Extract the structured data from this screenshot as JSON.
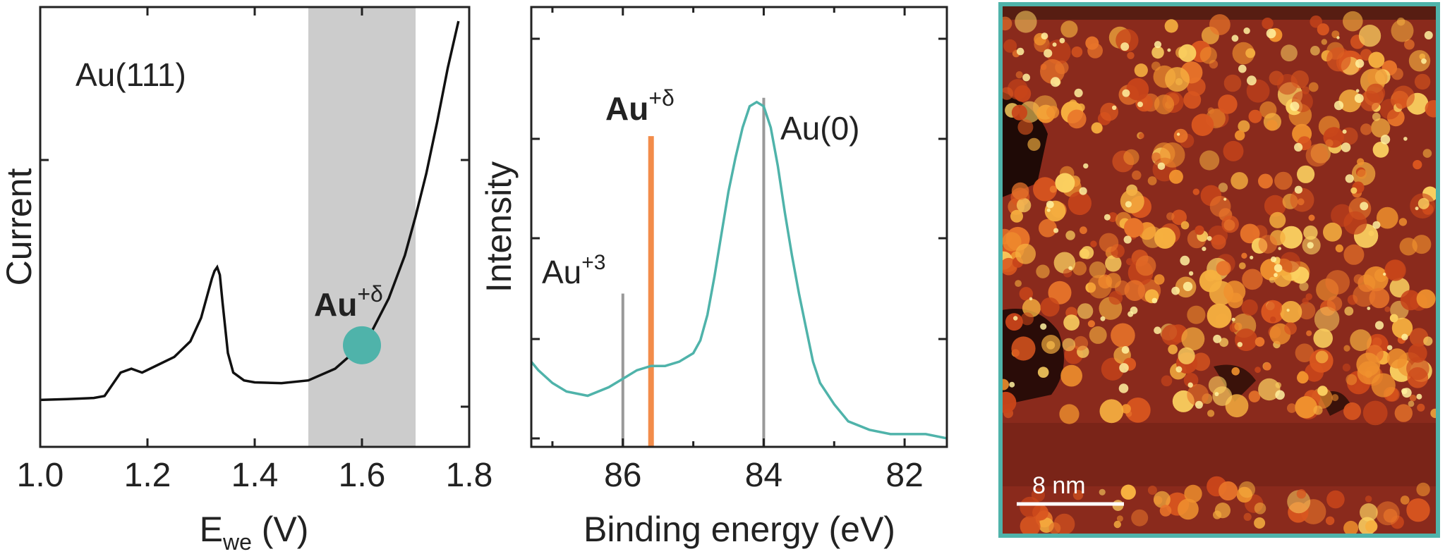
{
  "colors": {
    "axis": "#222222",
    "cv_line": "#111111",
    "teal": "#4fb3aa",
    "orange": "#f28c4a",
    "gray_band": "#cccccc",
    "gray_marker": "#999999"
  },
  "chart_data": [
    {
      "type": "line",
      "title": "",
      "sample_label": "Au(111)",
      "xlabel_main": "E",
      "xlabel_sub": "we",
      "xlabel_unit": " (V)",
      "ylabel": "Current",
      "xlim": [
        1.0,
        1.8
      ],
      "ylim": [
        0,
        1
      ],
      "x_ticks": [
        1.0,
        1.2,
        1.4,
        1.6,
        1.8
      ],
      "x_tick_labels": [
        "1.0",
        "1.2",
        "1.4",
        "1.6",
        "1.8"
      ],
      "highlight_band": [
        1.5,
        1.7
      ],
      "marker": {
        "x": 1.6,
        "y": 0.17
      },
      "annotation": {
        "base": "Au",
        "sup": "+δ"
      },
      "grid": false,
      "series": [
        {
          "x": [
            1.0,
            1.05,
            1.1,
            1.12,
            1.13,
            1.15,
            1.17,
            1.19,
            1.22,
            1.25,
            1.28,
            1.3,
            1.31,
            1.32,
            1.325,
            1.33,
            1.335,
            1.34,
            1.35,
            1.36,
            1.38,
            1.4,
            1.45,
            1.5,
            1.55,
            1.6,
            1.62,
            1.65,
            1.68,
            1.7,
            1.72,
            1.74,
            1.75,
            1.76,
            1.77,
            1.78
          ],
          "y": [
            0.03,
            0.032,
            0.035,
            0.04,
            0.06,
            0.1,
            0.11,
            0.1,
            0.12,
            0.14,
            0.18,
            0.24,
            0.29,
            0.34,
            0.36,
            0.37,
            0.35,
            0.28,
            0.15,
            0.1,
            0.08,
            0.075,
            0.073,
            0.08,
            0.11,
            0.17,
            0.21,
            0.29,
            0.4,
            0.5,
            0.61,
            0.74,
            0.81,
            0.88,
            0.94,
            1.0
          ]
        }
      ]
    },
    {
      "type": "line",
      "title": "",
      "xlabel": "Binding energy (eV)",
      "ylabel": "Intensity",
      "xlim": [
        87.3,
        81.4
      ],
      "ylim": [
        0,
        1
      ],
      "x_ticks": [
        86,
        84,
        82
      ],
      "x_tick_labels": [
        "86",
        "84",
        "82"
      ],
      "grid": false,
      "reference_lines": [
        {
          "x": 86.0,
          "height": 0.36,
          "label_base": "Au",
          "label_sup": "+3",
          "color": "gray"
        },
        {
          "x": 85.6,
          "height": 0.73,
          "label_base": "Au",
          "label_sup": "+δ",
          "color": "orange"
        },
        {
          "x": 84.0,
          "height": 0.82,
          "label_base": "Au(0)",
          "label_sup": "",
          "color": "gray"
        }
      ],
      "series": [
        {
          "x": [
            87.3,
            87.2,
            87.0,
            86.8,
            86.5,
            86.2,
            86.0,
            85.8,
            85.6,
            85.4,
            85.2,
            85.0,
            84.9,
            84.8,
            84.7,
            84.6,
            84.5,
            84.4,
            84.3,
            84.2,
            84.1,
            84.0,
            83.9,
            83.8,
            83.7,
            83.6,
            83.5,
            83.4,
            83.3,
            83.2,
            83.0,
            82.8,
            82.5,
            82.2,
            82.0,
            81.7,
            81.4
          ],
          "y": [
            0.2,
            0.18,
            0.15,
            0.13,
            0.12,
            0.14,
            0.16,
            0.18,
            0.19,
            0.19,
            0.2,
            0.22,
            0.25,
            0.31,
            0.4,
            0.5,
            0.6,
            0.68,
            0.75,
            0.8,
            0.81,
            0.8,
            0.75,
            0.66,
            0.55,
            0.45,
            0.36,
            0.28,
            0.2,
            0.15,
            0.1,
            0.06,
            0.04,
            0.03,
            0.03,
            0.03,
            0.02
          ]
        }
      ]
    }
  ],
  "stm_image": {
    "scale_bar_label": "8 nm"
  }
}
